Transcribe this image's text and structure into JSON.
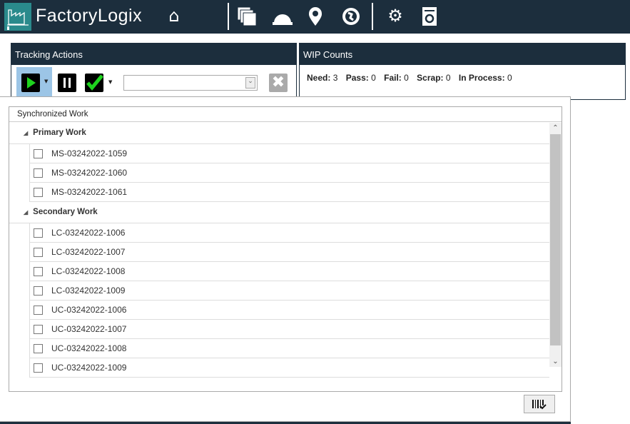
{
  "header": {
    "brand": "FactoryLogix",
    "icons": [
      "home-icon",
      "documents-icon",
      "hard-hat-icon",
      "location-pin-icon",
      "globe-icon",
      "gear-icon",
      "refresh-document-icon"
    ]
  },
  "tracking": {
    "title": "Tracking Actions",
    "dropdown_value": ""
  },
  "wip": {
    "title": "WIP Counts",
    "need_label": "Need:",
    "need": "3",
    "pass_label": "Pass:",
    "pass": "0",
    "fail_label": "Fail:",
    "fail": "0",
    "scrap_label": "Scrap:",
    "scrap": "0",
    "inprocess_label": "In Process:",
    "inprocess": "0"
  },
  "sync": {
    "title": "Synchronized Work",
    "groups": [
      {
        "label": "Primary Work",
        "items": [
          "MS-03242022-1059",
          "MS-03242022-1060",
          "MS-03242022-1061"
        ]
      },
      {
        "label": "Secondary Work",
        "items": [
          "LC-03242022-1006",
          "LC-03242022-1007",
          "LC-03242022-1008",
          "LC-03242022-1009",
          "UC-03242022-1006",
          "UC-03242022-1007",
          "UC-03242022-1008",
          "UC-03242022-1009"
        ]
      }
    ]
  },
  "colors": {
    "header": "#1c2e3d",
    "logo": "#2a8a8c",
    "play": "#1ed31e"
  }
}
